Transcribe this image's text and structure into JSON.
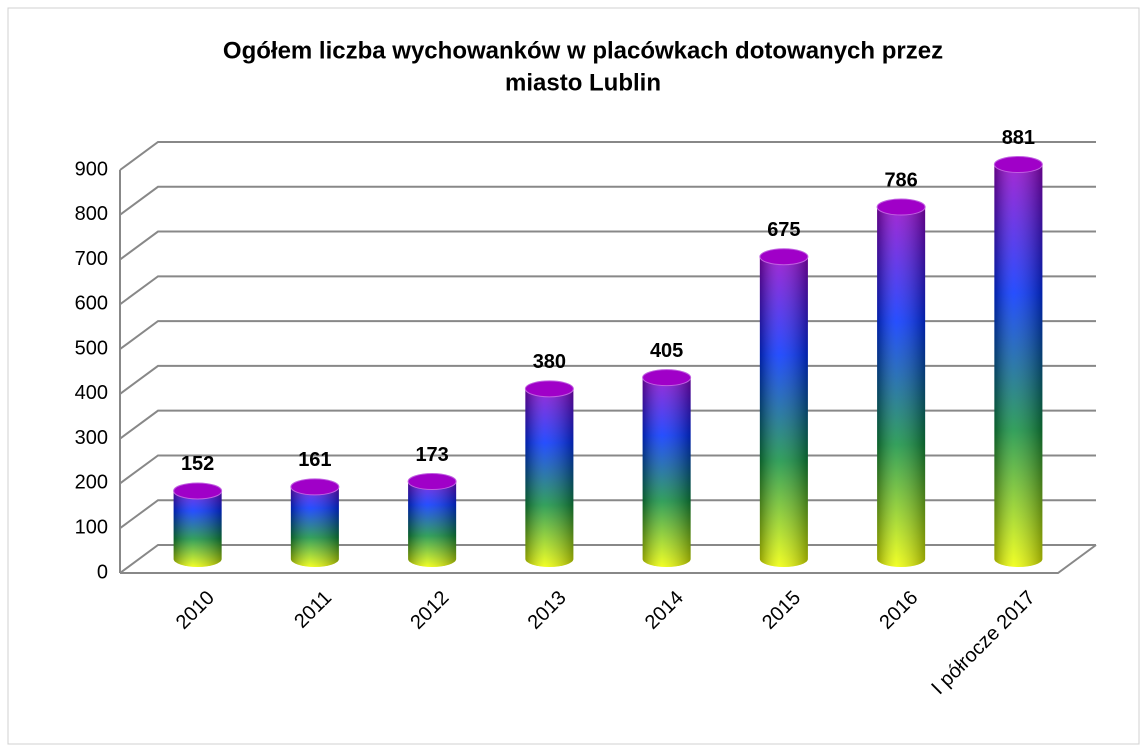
{
  "chart_data": {
    "type": "bar3d",
    "title": [
      "Ogółem liczba wychowanków w placówkach dotowanych przez",
      "miasto Lublin"
    ],
    "categories": [
      "2010",
      "2011",
      "2012",
      "2013",
      "2014",
      "2015",
      "2016",
      "I półrocze 2017"
    ],
    "values": [
      152,
      161,
      173,
      380,
      405,
      675,
      786,
      881
    ],
    "colors": [
      "#f0ff00",
      "#109040",
      "#0030ff",
      "#a000c8"
    ],
    "ylim": [
      0,
      900
    ],
    "yticks": [
      0,
      100,
      200,
      300,
      400,
      500,
      600,
      700,
      800,
      900
    ],
    "grid": true
  }
}
